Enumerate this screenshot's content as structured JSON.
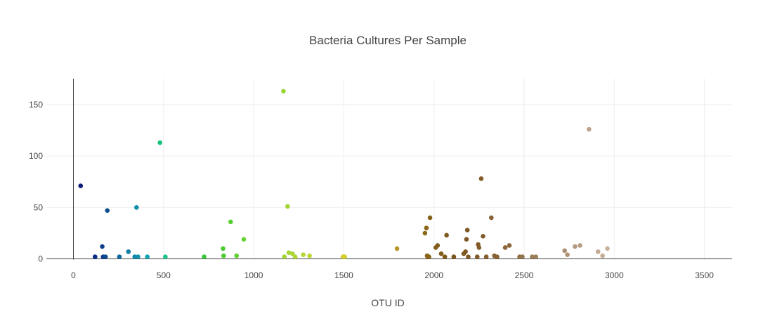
{
  "chart_data": {
    "type": "scatter",
    "title": "Bacteria Cultures Per Sample",
    "xlabel": "OTU ID",
    "ylabel": "",
    "xlim": [
      -150,
      3650
    ],
    "ylim": [
      -2,
      175
    ],
    "xticks": [
      0,
      500,
      1000,
      1500,
      2000,
      2500,
      3000,
      3500
    ],
    "yticks": [
      0,
      50,
      100,
      150
    ],
    "grid": true,
    "legend": "none",
    "points": [
      {
        "x": 40,
        "y": 71,
        "color": "#0b1d78"
      },
      {
        "x": 120,
        "y": 2,
        "color": "#0d2d80"
      },
      {
        "x": 160,
        "y": 12,
        "color": "#0d3d88"
      },
      {
        "x": 165,
        "y": 2,
        "color": "#0d3d88"
      },
      {
        "x": 178,
        "y": 2,
        "color": "#0d4a8e"
      },
      {
        "x": 188,
        "y": 47,
        "color": "#0d4f92"
      },
      {
        "x": 255,
        "y": 2,
        "color": "#10699c"
      },
      {
        "x": 305,
        "y": 7,
        "color": "#117da4"
      },
      {
        "x": 340,
        "y": 2,
        "color": "#1188aa"
      },
      {
        "x": 350,
        "y": 50,
        "color": "#118cab"
      },
      {
        "x": 358,
        "y": 2,
        "color": "#1290ac"
      },
      {
        "x": 410,
        "y": 2,
        "color": "#12a3b0"
      },
      {
        "x": 480,
        "y": 113,
        "color": "#18c07e"
      },
      {
        "x": 510,
        "y": 2,
        "color": "#1cc48a"
      },
      {
        "x": 725,
        "y": 2,
        "color": "#3ac53a"
      },
      {
        "x": 830,
        "y": 10,
        "color": "#4ccc30"
      },
      {
        "x": 833,
        "y": 3,
        "color": "#4ccc30"
      },
      {
        "x": 872,
        "y": 36,
        "color": "#55d030"
      },
      {
        "x": 905,
        "y": 3,
        "color": "#60d032"
      },
      {
        "x": 945,
        "y": 19,
        "color": "#68d232"
      },
      {
        "x": 1165,
        "y": 163,
        "color": "#9ad532"
      },
      {
        "x": 1170,
        "y": 2,
        "color": "#9ed534"
      },
      {
        "x": 1188,
        "y": 51,
        "color": "#a2d534"
      },
      {
        "x": 1195,
        "y": 6,
        "color": "#a4d534"
      },
      {
        "x": 1215,
        "y": 5,
        "color": "#a8d636"
      },
      {
        "x": 1230,
        "y": 2,
        "color": "#acd636"
      },
      {
        "x": 1275,
        "y": 4,
        "color": "#b4d636"
      },
      {
        "x": 1310,
        "y": 3,
        "color": "#bcd636"
      },
      {
        "x": 1495,
        "y": 2,
        "color": "#cfd22c"
      },
      {
        "x": 1505,
        "y": 2,
        "color": "#d0d02c"
      },
      {
        "x": 1795,
        "y": 10,
        "color": "#b8962a"
      },
      {
        "x": 1950,
        "y": 25,
        "color": "#8e6818"
      },
      {
        "x": 1958,
        "y": 30,
        "color": "#8c6618"
      },
      {
        "x": 1962,
        "y": 3,
        "color": "#8a6418"
      },
      {
        "x": 1965,
        "y": 2,
        "color": "#8a6418"
      },
      {
        "x": 1972,
        "y": 2,
        "color": "#886218"
      },
      {
        "x": 1978,
        "y": 40,
        "color": "#86601a"
      },
      {
        "x": 2010,
        "y": 11,
        "color": "#835d1a"
      },
      {
        "x": 2020,
        "y": 13,
        "color": "#815c1a"
      },
      {
        "x": 2040,
        "y": 5,
        "color": "#805a1a"
      },
      {
        "x": 2060,
        "y": 2,
        "color": "#7e591a"
      },
      {
        "x": 2070,
        "y": 23,
        "color": "#7c581a"
      },
      {
        "x": 2110,
        "y": 2,
        "color": "#7a561a"
      },
      {
        "x": 2165,
        "y": 5,
        "color": "#7c5520"
      },
      {
        "x": 2175,
        "y": 7,
        "color": "#7c5520"
      },
      {
        "x": 2180,
        "y": 19,
        "color": "#7e5724"
      },
      {
        "x": 2185,
        "y": 28,
        "color": "#7e5724"
      },
      {
        "x": 2190,
        "y": 2,
        "color": "#805826"
      },
      {
        "x": 2240,
        "y": 2,
        "color": "#825a28"
      },
      {
        "x": 2245,
        "y": 14,
        "color": "#825a28"
      },
      {
        "x": 2250,
        "y": 11,
        "color": "#835b2a"
      },
      {
        "x": 2262,
        "y": 78,
        "color": "#845c2a"
      },
      {
        "x": 2272,
        "y": 22,
        "color": "#855d2c"
      },
      {
        "x": 2290,
        "y": 2,
        "color": "#865e2e"
      },
      {
        "x": 2318,
        "y": 40,
        "color": "#876030"
      },
      {
        "x": 2335,
        "y": 3,
        "color": "#886132"
      },
      {
        "x": 2350,
        "y": 2,
        "color": "#896234"
      },
      {
        "x": 2395,
        "y": 11,
        "color": "#8b6438"
      },
      {
        "x": 2418,
        "y": 13,
        "color": "#8c663a"
      },
      {
        "x": 2475,
        "y": 2,
        "color": "#917048"
      },
      {
        "x": 2490,
        "y": 2,
        "color": "#94744c"
      },
      {
        "x": 2545,
        "y": 2,
        "color": "#9a7c56"
      },
      {
        "x": 2565,
        "y": 2,
        "color": "#9c805a"
      },
      {
        "x": 2725,
        "y": 8,
        "color": "#ad9074"
      },
      {
        "x": 2740,
        "y": 4,
        "color": "#b09478"
      },
      {
        "x": 2782,
        "y": 12,
        "color": "#b4997e"
      },
      {
        "x": 2810,
        "y": 13,
        "color": "#b89d84"
      },
      {
        "x": 2860,
        "y": 126,
        "color": "#bca48c"
      },
      {
        "x": 2910,
        "y": 7,
        "color": "#c2aa94"
      },
      {
        "x": 2935,
        "y": 3,
        "color": "#c5ae98"
      },
      {
        "x": 2962,
        "y": 10,
        "color": "#c8b29c"
      }
    ]
  }
}
